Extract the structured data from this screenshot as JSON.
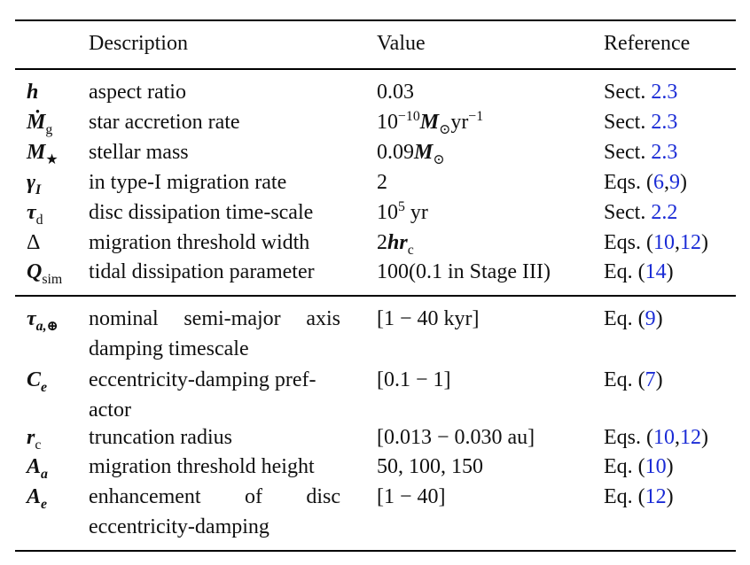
{
  "header": {
    "description": "Description",
    "value": "Value",
    "reference": "Reference"
  },
  "rows": [
    {
      "symbol": "h",
      "description": "aspect ratio",
      "value": "0.03",
      "ref_prefix": "Sect. ",
      "ref_links": [
        "2.3"
      ],
      "ref_suffix": ""
    },
    {
      "symbol": "Ṁ_g",
      "description": "star accretion rate",
      "value": "10^-10 M_⊙ yr^-1",
      "ref_prefix": "Sect. ",
      "ref_links": [
        "2.3"
      ],
      "ref_suffix": ""
    },
    {
      "symbol": "M_★",
      "description": "stellar mass",
      "value": "0.09M_⊙",
      "ref_prefix": "Sect. ",
      "ref_links": [
        "2.3"
      ],
      "ref_suffix": ""
    },
    {
      "symbol": "γ_I",
      "description": "in type-I migration rate",
      "value": "2",
      "ref_prefix": "Eqs. (",
      "ref_links": [
        "6",
        "9"
      ],
      "ref_suffix": ")"
    },
    {
      "symbol": "τ_d",
      "description": "disc dissipation time-scale",
      "value": "10^5 yr",
      "ref_prefix": "Sect. ",
      "ref_links": [
        "2.2"
      ],
      "ref_suffix": ""
    },
    {
      "symbol": "Δ",
      "description": "migration threshold width",
      "value": "2hr_c",
      "ref_prefix": "Eqs. (",
      "ref_links": [
        "10",
        "12"
      ],
      "ref_suffix": ")"
    },
    {
      "symbol": "Q_sim",
      "description": "tidal dissipation parameter",
      "value": "100(0.1 in Stage III)",
      "ref_prefix": "Eq. (",
      "ref_links": [
        "14"
      ],
      "ref_suffix": ")"
    },
    {
      "symbol": "τ_a,⊕",
      "description": "nominal semi-major axis damping timescale",
      "value": "[1 − 40 kyr]",
      "ref_prefix": "Eq. (",
      "ref_links": [
        "9"
      ],
      "ref_suffix": ")"
    },
    {
      "symbol": "C_e",
      "description": "eccentricity-damping prefactor",
      "value": "[0.1 − 1]",
      "ref_prefix": "Eq. (",
      "ref_links": [
        "7"
      ],
      "ref_suffix": ")"
    },
    {
      "symbol": "r_c",
      "description": "truncation radius",
      "value": "[0.013 − 0.030 au]",
      "ref_prefix": "Eqs. (",
      "ref_links": [
        "10",
        "12"
      ],
      "ref_suffix": ")"
    },
    {
      "symbol": "A_a",
      "description": "migration threshold height",
      "value": "50, 100, 150",
      "ref_prefix": "Eq. (",
      "ref_links": [
        "10"
      ],
      "ref_suffix": ")"
    },
    {
      "symbol": "A_e",
      "description": "enhancement of disc eccentricity-damping",
      "value": "[1 − 40]",
      "ref_prefix": "Eq. (",
      "ref_links": [
        "12"
      ],
      "ref_suffix": ")"
    }
  ],
  "display": {
    "sym_h": "h",
    "sym_mdot": "Ṁ",
    "sym_mdot_sub": "g",
    "sym_mstar": "M",
    "sym_mstar_sub": "★",
    "sym_gamma": "γ",
    "sym_gamma_sub": "I",
    "sym_tau": "τ",
    "sym_tau_sub": "d",
    "sym_delta": "Δ",
    "sym_q": "Q",
    "sym_q_sub": "sim",
    "sym_taua": "τ",
    "sym_taua_sub": "a,⊕",
    "sym_ce": "C",
    "sym_ce_sub": "e",
    "sym_rc": "r",
    "sym_rc_sub": "c",
    "sym_aa": "A",
    "sym_aa_sub": "a",
    "sym_ae": "A",
    "sym_ae_sub": "e",
    "val_mdot_base": "10",
    "val_mdot_exp": "−10",
    "val_mdot_unit": "M",
    "val_mdot_sun": "⊙",
    "val_mdot_yr": "yr",
    "val_mdot_yrexp": "−1",
    "val_mstar_num": "0.09",
    "val_mstar_m": "M",
    "val_mstar_sun": "⊙",
    "val_tau_base": "10",
    "val_tau_exp": "5",
    "val_tau_unit": " yr",
    "val_delta_2": "2",
    "val_delta_hr": "hr",
    "val_delta_sub": "c",
    "desc_taua_l1a": "nominal",
    "desc_taua_l1b": "semi-major",
    "desc_taua_l1c": "axis",
    "desc_taua_l2": "damping timescale",
    "desc_ce_l1": "eccentricity-damping pref-",
    "desc_ce_l2": "actor",
    "desc_ae_l1a": "enhancement",
    "desc_ae_l1b": "of",
    "desc_ae_l1c": "disc",
    "desc_ae_l2": "eccentricity-damping"
  }
}
